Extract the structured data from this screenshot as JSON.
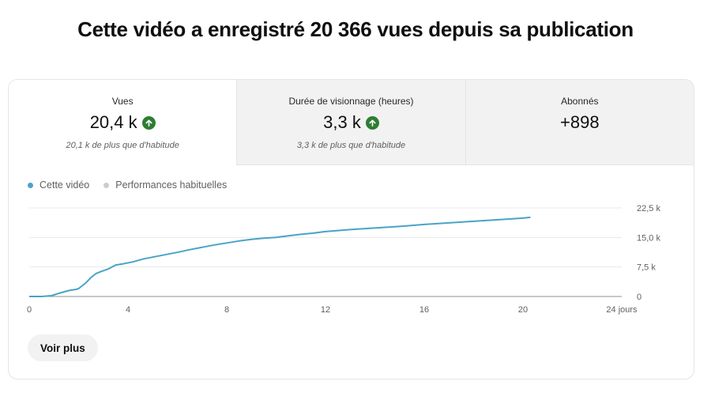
{
  "headline": "Cette vidéo a enregistré 20 366 vues depuis sa publication",
  "metrics": [
    {
      "label": "Vues",
      "value": "20,4 k",
      "trend": "up",
      "sub": "20,1 k de plus que d'habitude"
    },
    {
      "label": "Durée de visionnage (heures)",
      "value": "3,3 k",
      "trend": "up",
      "sub": "3,3 k de plus que d'habitude"
    },
    {
      "label": "Abonnés",
      "value": "+898",
      "trend": "",
      "sub": ""
    }
  ],
  "legend": [
    {
      "name": "Cette vidéo",
      "color": "#4aa3c7"
    },
    {
      "name": "Performances habituelles",
      "color": "#cccccc"
    }
  ],
  "chart_data": {
    "type": "line",
    "x_ticks": [
      "0",
      "4",
      "8",
      "12",
      "16",
      "20",
      "24 jours"
    ],
    "y_ticks": [
      "0",
      "7,5 k",
      "15,0 k",
      "22,5 k"
    ],
    "xlim": [
      0,
      24
    ],
    "ylim": [
      0,
      22500
    ],
    "grid": true,
    "legend_position": "top-left",
    "series": [
      {
        "name": "Cette vidéo",
        "color": "#4aa3c7",
        "x": [
          0,
          0.5,
          0.9,
          1.2,
          1.6,
          1.9,
          2.0,
          2.3,
          2.5,
          2.7,
          2.9,
          3.2,
          3.5,
          3.8,
          4.2,
          4.6,
          5.0,
          5.5,
          6.0,
          6.5,
          7.0,
          7.5,
          8.0,
          8.5,
          9.0,
          9.5,
          10.0,
          10.5,
          11.0,
          11.5,
          12.0,
          13.0,
          14.0,
          15.0,
          16.0,
          17.0,
          18.0,
          19.0,
          20.0,
          20.3
        ],
        "y": [
          0,
          0,
          200,
          800,
          1500,
          1800,
          2000,
          3500,
          4800,
          5800,
          6300,
          7000,
          8000,
          8300,
          8800,
          9500,
          10000,
          10600,
          11200,
          11900,
          12500,
          13100,
          13600,
          14100,
          14500,
          14800,
          15000,
          15400,
          15800,
          16100,
          16500,
          17000,
          17400,
          17800,
          18300,
          18700,
          19100,
          19500,
          19900,
          20100
        ]
      }
    ]
  },
  "more_button": "Voir plus"
}
